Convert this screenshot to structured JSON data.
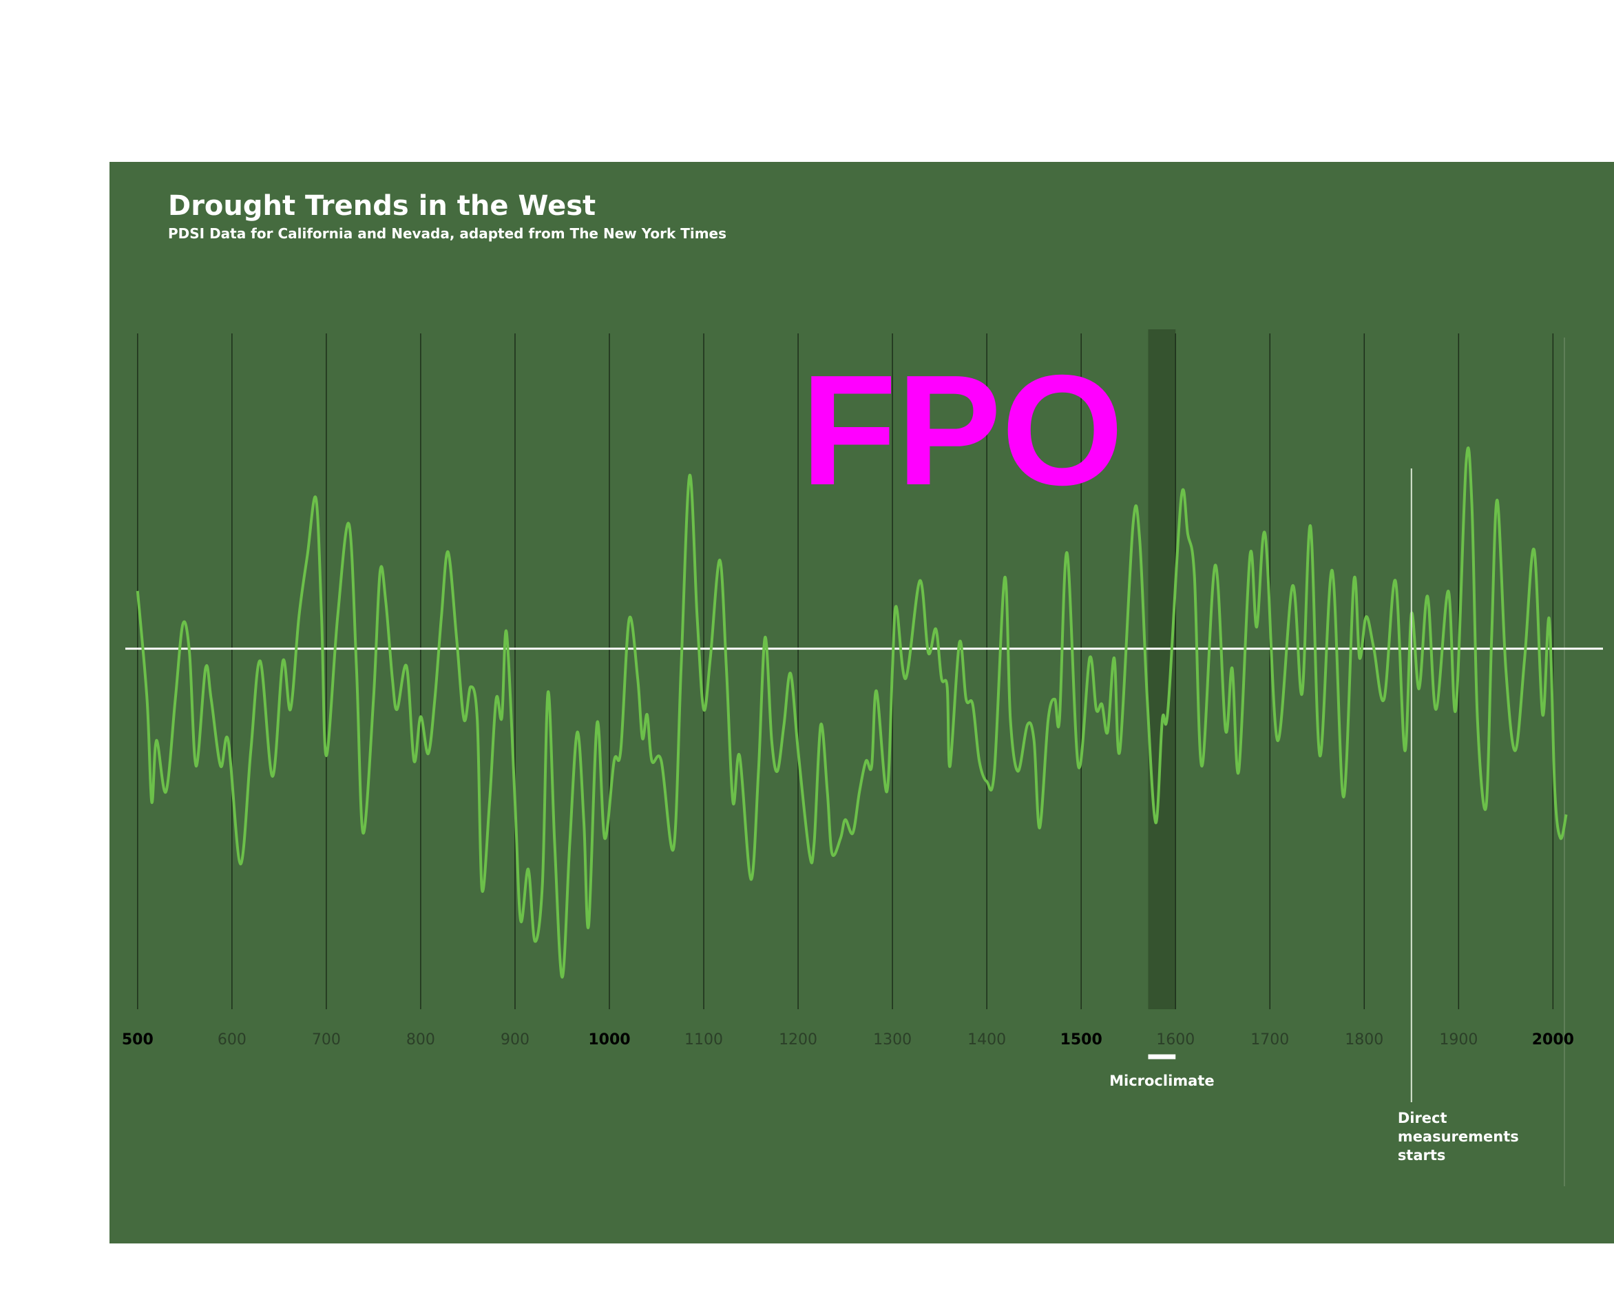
{
  "chart_data": {
    "type": "line",
    "title": "Drought Trends in the West",
    "subtitle": "PDSI Data for California and Nevada, adapted from The New York Times",
    "watermark": "FPO",
    "x": [
      500,
      510,
      515,
      520,
      530,
      540,
      548,
      555,
      562,
      572,
      578,
      588,
      596,
      609,
      620,
      630,
      643,
      654,
      662,
      671,
      680,
      689,
      695,
      700,
      712,
      724,
      732,
      739,
      750,
      757,
      763,
      770,
      775,
      785,
      793,
      800,
      808,
      815,
      822,
      829,
      838,
      846,
      853,
      860,
      865,
      873,
      880,
      886,
      891,
      900,
      906,
      914,
      921,
      929,
      935,
      942,
      950,
      958,
      966,
      973,
      978,
      987,
      995,
      1005,
      1012,
      1021,
      1030,
      1035,
      1040,
      1045,
      1055,
      1068,
      1076,
      1085,
      1093,
      1100,
      1107,
      1117,
      1124,
      1131,
      1138,
      1150,
      1158,
      1165,
      1172,
      1178,
      1185,
      1192,
      1200,
      1212,
      1217,
      1224,
      1231,
      1236,
      1245,
      1250,
      1258,
      1265,
      1272,
      1278,
      1283,
      1294,
      1300,
      1304,
      1314,
      1329,
      1338,
      1346,
      1352,
      1358,
      1361,
      1371,
      1378,
      1385,
      1392,
      1400,
      1408,
      1419,
      1425,
      1433,
      1443,
      1450,
      1456,
      1465,
      1472,
      1477,
      1485,
      1497,
      1509,
      1516,
      1522,
      1528,
      1535,
      1541,
      1555,
      1562,
      1570,
      1579,
      1586,
      1592,
      1606,
      1613,
      1620,
      1628,
      1642,
      1653,
      1660,
      1667,
      1679,
      1686,
      1695,
      1708,
      1724,
      1734,
      1743,
      1753,
      1766,
      1778,
      1789,
      1795,
      1802,
      1810,
      1821,
      1833,
      1843,
      1850,
      1858,
      1867,
      1876,
      1889,
      1897,
      1908,
      1914,
      1920,
      1929,
      1935,
      1941,
      1950,
      1960,
      1970,
      1980,
      1989,
      1996,
      2002,
      2008,
      2014
    ],
    "series": [
      {
        "name": "PDSI",
        "color": "#6cc04a",
        "values": [
          0.56,
          -0.49,
          -1.49,
          -0.89,
          -1.39,
          -0.49,
          0.24,
          -0.04,
          -1.14,
          -0.19,
          -0.49,
          -1.14,
          -0.89,
          -2.09,
          -0.99,
          -0.12,
          -1.24,
          -0.12,
          -0.59,
          0.31,
          0.91,
          1.46,
          0.31,
          -1.04,
          0.31,
          1.21,
          -0.19,
          -1.79,
          -0.49,
          0.75,
          0.46,
          -0.29,
          -0.59,
          -0.17,
          -1.09,
          -0.66,
          -1.02,
          -0.49,
          0.31,
          0.94,
          0.11,
          -0.69,
          -0.37,
          -0.69,
          -2.34,
          -1.49,
          -0.49,
          -0.67,
          0.16,
          -1.49,
          -2.64,
          -2.14,
          -2.84,
          -2.29,
          -0.42,
          -1.89,
          -3.19,
          -1.89,
          -0.81,
          -1.69,
          -2.69,
          -0.72,
          -1.84,
          -1.09,
          -0.99,
          0.29,
          -0.29,
          -0.87,
          -0.64,
          -1.09,
          -1.09,
          -1.94,
          -0.19,
          1.68,
          0.31,
          -0.59,
          -0.09,
          0.86,
          -0.19,
          -1.49,
          -1.04,
          -2.24,
          -1.19,
          0.11,
          -0.89,
          -1.19,
          -0.74,
          -0.24,
          -0.99,
          -1.99,
          -1.89,
          -0.74,
          -1.39,
          -1.99,
          -1.84,
          -1.66,
          -1.79,
          -1.39,
          -1.09,
          -1.14,
          -0.41,
          -1.39,
          -0.19,
          0.41,
          -0.29,
          0.66,
          -0.04,
          0.19,
          -0.29,
          -0.37,
          -1.14,
          0.06,
          -0.49,
          -0.54,
          -1.09,
          -1.29,
          -1.19,
          0.69,
          -0.69,
          -1.19,
          -0.74,
          -0.89,
          -1.74,
          -0.69,
          -0.49,
          -0.69,
          0.93,
          -1.14,
          -0.09,
          -0.59,
          -0.54,
          -0.81,
          -0.09,
          -0.99,
          1.21,
          1.06,
          -0.49,
          -1.69,
          -0.69,
          -0.59,
          1.46,
          1.11,
          0.71,
          -1.14,
          0.81,
          -0.79,
          -0.19,
          -1.19,
          0.91,
          0.21,
          1.11,
          -0.89,
          0.61,
          -0.44,
          1.19,
          -1.04,
          0.76,
          -1.44,
          0.66,
          -0.09,
          0.31,
          0.01,
          -0.49,
          0.66,
          -0.99,
          0.34,
          -0.39,
          0.51,
          -0.59,
          0.56,
          -0.59,
          1.81,
          1.41,
          -0.69,
          -1.54,
          0.11,
          1.44,
          -0.19,
          -0.99,
          -0.09,
          0.96,
          -0.64,
          0.29,
          -1.39,
          -1.84,
          -1.61
        ]
      }
    ],
    "xlim": [
      487,
      2053
    ],
    "ylim": [
      -3.5,
      3.1
    ],
    "xticks": [
      500,
      600,
      700,
      800,
      900,
      1000,
      1100,
      1200,
      1300,
      1400,
      1500,
      1600,
      1700,
      1800,
      1900,
      2000
    ],
    "grid": true,
    "annotations": [
      {
        "text": "Microclimate",
        "x": [
          1571,
          1600
        ]
      },
      {
        "text": [
          "Direct",
          "measurements",
          "starts"
        ],
        "x": 1850
      }
    ]
  }
}
